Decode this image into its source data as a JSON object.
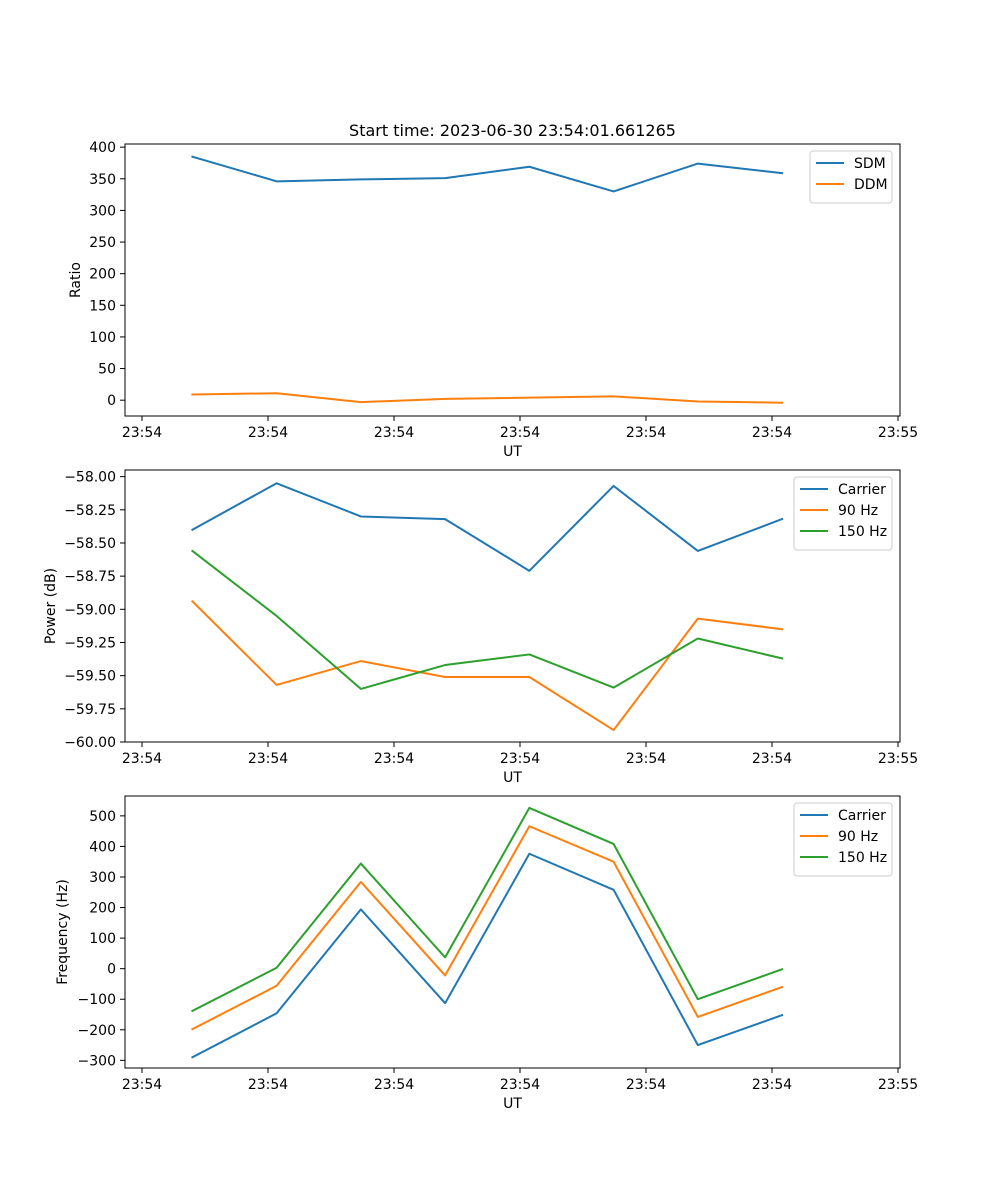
{
  "title": "Start time: 2023-06-30 23:54:01.661265",
  "x_tick_labels": [
    "23:54",
    "23:54",
    "23:54",
    "23:54",
    "23:54",
    "23:54",
    "23:55"
  ],
  "chart_data": [
    {
      "type": "line",
      "title": "Start time: 2023-06-30 23:54:01.661265",
      "xlabel": "UT",
      "ylabel": "Ratio",
      "x": [
        1,
        2,
        3,
        4,
        5,
        6,
        7,
        8
      ],
      "xlim": [
        0.2,
        9.4
      ],
      "ylim": [
        -25,
        405
      ],
      "yticks": [
        0,
        50,
        100,
        150,
        200,
        250,
        300,
        350,
        400
      ],
      "ytick_labels": [
        "0",
        "50",
        "100",
        "150",
        "200",
        "250",
        "300",
        "350",
        "400"
      ],
      "legend_position": "top-right",
      "grid": false,
      "series": [
        {
          "name": "SDM",
          "color": "#1f77b4",
          "values": [
            385,
            346,
            349,
            351,
            369,
            330,
            374,
            359
          ]
        },
        {
          "name": "DDM",
          "color": "#ff7f0e",
          "values": [
            9,
            11,
            -3,
            2,
            4,
            6,
            -2,
            -4
          ]
        }
      ]
    },
    {
      "type": "line",
      "title": "",
      "xlabel": "UT",
      "ylabel": "Power (dB)",
      "x": [
        1,
        2,
        3,
        4,
        5,
        6,
        7,
        8
      ],
      "xlim": [
        0.2,
        9.4
      ],
      "ylim": [
        -60.0,
        -57.95
      ],
      "yticks": [
        -60.0,
        -59.75,
        -59.5,
        -59.25,
        -59.0,
        -58.75,
        -58.5,
        -58.25,
        -58.0
      ],
      "ytick_labels": [
        "−60.00",
        "−59.75",
        "−59.50",
        "−59.25",
        "−59.00",
        "−58.75",
        "−58.50",
        "−58.25",
        "−58.00"
      ],
      "legend_position": "top-right",
      "grid": false,
      "series": [
        {
          "name": "Carrier",
          "color": "#1f77b4",
          "values": [
            -58.4,
            -58.05,
            -58.3,
            -58.32,
            -58.71,
            -58.07,
            -58.56,
            -58.32
          ]
        },
        {
          "name": "90 Hz",
          "color": "#ff7f0e",
          "values": [
            -58.94,
            -59.57,
            -59.39,
            -59.51,
            -59.51,
            -59.91,
            -59.07,
            -59.15
          ]
        },
        {
          "name": "150 Hz",
          "color": "#2ca02c",
          "values": [
            -58.56,
            -59.05,
            -59.6,
            -59.42,
            -59.34,
            -59.59,
            -59.22,
            -59.37
          ]
        }
      ]
    },
    {
      "type": "line",
      "title": "",
      "xlabel": "UT",
      "ylabel": "Frequency (Hz)",
      "x": [
        1,
        2,
        3,
        4,
        5,
        6,
        7,
        8
      ],
      "xlim": [
        0.2,
        9.4
      ],
      "ylim": [
        -325,
        565
      ],
      "yticks": [
        -300,
        -200,
        -100,
        0,
        100,
        200,
        300,
        400,
        500
      ],
      "ytick_labels": [
        "−300",
        "−200",
        "−100",
        "0",
        "100",
        "200",
        "300",
        "400",
        "500"
      ],
      "legend_position": "top-right",
      "grid": false,
      "series": [
        {
          "name": "Carrier",
          "color": "#1f77b4",
          "values": [
            -290,
            -146,
            194,
            -113,
            376,
            258,
            -250,
            -152
          ]
        },
        {
          "name": "90 Hz",
          "color": "#ff7f0e",
          "values": [
            -198,
            -56,
            284,
            -22,
            466,
            350,
            -158,
            -60
          ]
        },
        {
          "name": "150 Hz",
          "color": "#2ca02c",
          "values": [
            -138,
            3,
            344,
            37,
            526,
            408,
            -100,
            -2
          ]
        }
      ]
    }
  ]
}
